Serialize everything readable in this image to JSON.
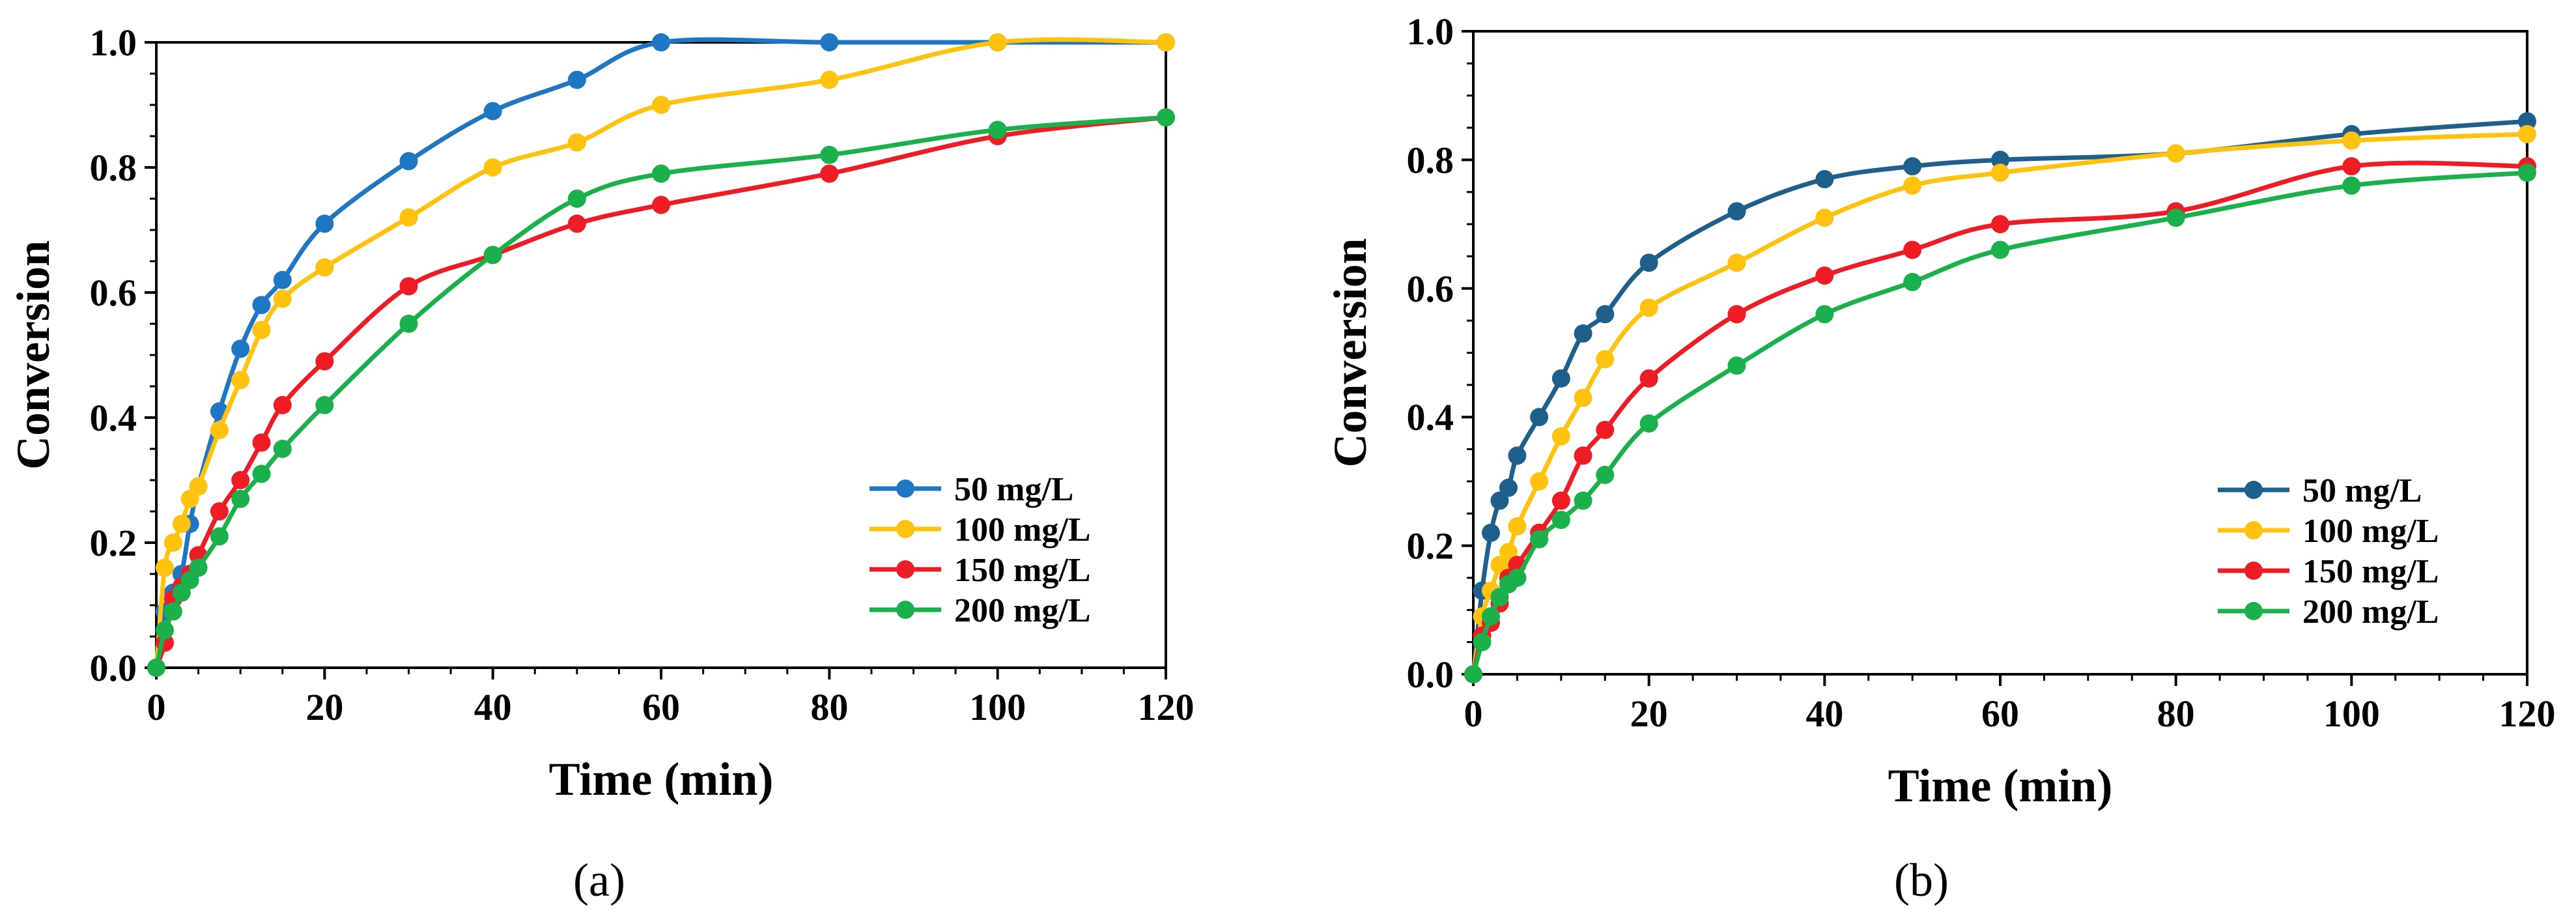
{
  "chart_data": [
    {
      "type": "line",
      "panel_label": "(a)",
      "xlabel": "Time (min)",
      "ylabel": "Conversion",
      "xlim": [
        0,
        120
      ],
      "ylim": [
        0,
        1
      ],
      "xticks": [
        "0",
        "20",
        "40",
        "60",
        "80",
        "100",
        "120"
      ],
      "yticks": [
        "0.0",
        "0.2",
        "0.4",
        "0.6",
        "0.8",
        "1.0"
      ],
      "legend_position": "center-right",
      "series": [
        {
          "name": "50 mg/L",
          "color": "#1f77c4",
          "x": [
            0,
            1,
            2,
            3,
            4,
            5,
            7.5,
            10,
            12.5,
            15,
            20,
            30,
            40,
            50,
            60,
            80,
            100,
            120
          ],
          "y": [
            0,
            0.09,
            0.12,
            0.15,
            0.23,
            0.29,
            0.41,
            0.51,
            0.58,
            0.62,
            0.71,
            0.81,
            0.89,
            0.94,
            1.0,
            1.0,
            1.0,
            1.0
          ]
        },
        {
          "name": "100 mg/L",
          "color": "#ffc20e",
          "x": [
            0,
            1,
            2,
            3,
            4,
            5,
            7.5,
            10,
            12.5,
            15,
            20,
            30,
            40,
            50,
            60,
            80,
            100,
            120
          ],
          "y": [
            0,
            0.16,
            0.2,
            0.23,
            0.27,
            0.29,
            0.38,
            0.46,
            0.54,
            0.59,
            0.64,
            0.72,
            0.8,
            0.84,
            0.9,
            0.94,
            1.0,
            1.0
          ]
        },
        {
          "name": "150 mg/L",
          "color": "#ee1c25",
          "x": [
            0,
            1,
            2,
            3,
            4,
            5,
            7.5,
            10,
            12.5,
            15,
            20,
            30,
            40,
            50,
            60,
            80,
            100,
            120
          ],
          "y": [
            0,
            0.04,
            0.11,
            0.13,
            0.15,
            0.18,
            0.25,
            0.3,
            0.36,
            0.42,
            0.49,
            0.61,
            0.66,
            0.71,
            0.74,
            0.79,
            0.85,
            0.88
          ]
        },
        {
          "name": "200 mg/L",
          "color": "#1ab04b",
          "x": [
            0,
            1,
            2,
            3,
            4,
            5,
            7.5,
            10,
            12.5,
            15,
            20,
            30,
            40,
            50,
            60,
            80,
            100,
            120
          ],
          "y": [
            0,
            0.06,
            0.09,
            0.12,
            0.14,
            0.16,
            0.21,
            0.27,
            0.31,
            0.35,
            0.42,
            0.55,
            0.66,
            0.75,
            0.79,
            0.82,
            0.86,
            0.88
          ]
        }
      ]
    },
    {
      "type": "line",
      "panel_label": "(b)",
      "xlabel": "Time (min)",
      "ylabel": "Conversion",
      "xlim": [
        0,
        120
      ],
      "ylim": [
        0,
        1
      ],
      "xticks": [
        "0",
        "20",
        "40",
        "60",
        "80",
        "100",
        "120"
      ],
      "yticks": [
        "0.0",
        "0.2",
        "0.4",
        "0.6",
        "0.8",
        "1.0"
      ],
      "legend_position": "center-right",
      "series": [
        {
          "name": "50 mg/L",
          "color": "#1f5f8b",
          "x": [
            0,
            1,
            2,
            3,
            4,
            5,
            7.5,
            10,
            12.5,
            15,
            20,
            30,
            40,
            50,
            60,
            80,
            100,
            120
          ],
          "y": [
            0,
            0.13,
            0.22,
            0.27,
            0.29,
            0.34,
            0.4,
            0.46,
            0.53,
            0.56,
            0.64,
            0.72,
            0.77,
            0.79,
            0.8,
            0.81,
            0.84,
            0.86
          ]
        },
        {
          "name": "100 mg/L",
          "color": "#ffc20e",
          "x": [
            0,
            1,
            2,
            3,
            4,
            5,
            7.5,
            10,
            12.5,
            15,
            20,
            30,
            40,
            50,
            60,
            80,
            100,
            120
          ],
          "y": [
            0,
            0.09,
            0.13,
            0.17,
            0.19,
            0.23,
            0.3,
            0.37,
            0.43,
            0.49,
            0.57,
            0.64,
            0.71,
            0.76,
            0.78,
            0.81,
            0.83,
            0.84
          ]
        },
        {
          "name": "150 mg/L",
          "color": "#ee1c25",
          "x": [
            0,
            1,
            2,
            3,
            4,
            5,
            7.5,
            10,
            12.5,
            15,
            20,
            30,
            40,
            50,
            60,
            80,
            100,
            120
          ],
          "y": [
            0,
            0.06,
            0.08,
            0.11,
            0.15,
            0.17,
            0.22,
            0.27,
            0.34,
            0.38,
            0.46,
            0.56,
            0.62,
            0.66,
            0.7,
            0.72,
            0.79,
            0.79
          ]
        },
        {
          "name": "200 mg/L",
          "color": "#1ab04b",
          "x": [
            0,
            1,
            2,
            3,
            4,
            5,
            7.5,
            10,
            12.5,
            15,
            20,
            30,
            40,
            50,
            60,
            80,
            100,
            120
          ],
          "y": [
            0,
            0.05,
            0.09,
            0.12,
            0.14,
            0.15,
            0.21,
            0.24,
            0.27,
            0.31,
            0.39,
            0.48,
            0.56,
            0.61,
            0.66,
            0.71,
            0.76,
            0.78
          ]
        }
      ]
    }
  ]
}
